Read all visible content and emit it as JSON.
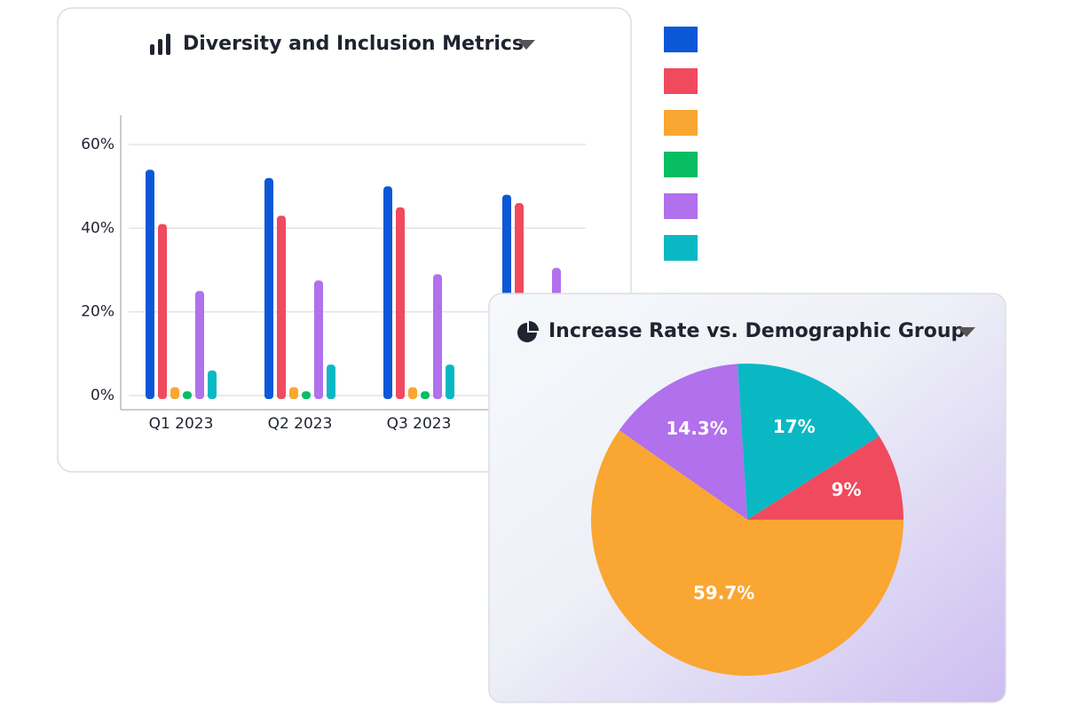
{
  "chart_data": [
    {
      "type": "bar",
      "title": "Diversity and Inclusion Metrics",
      "categories": [
        "Q1 2023",
        "Q2 2023",
        "Q3 2023",
        null
      ],
      "series": [
        {
          "color": "#0b57d8",
          "values": [
            54,
            52,
            50,
            48
          ]
        },
        {
          "color": "#f04a5e",
          "values": [
            41,
            43,
            45,
            46
          ]
        },
        {
          "color": "#f9a632",
          "values": [
            2,
            2,
            2,
            null
          ]
        },
        {
          "color": "#08bd63",
          "values": [
            1,
            1,
            1,
            null
          ]
        },
        {
          "color": "#b170ec",
          "values": [
            25,
            27.5,
            29,
            30.5
          ]
        },
        {
          "color": "#0ab8c4",
          "values": [
            6,
            7.4,
            7.4,
            null
          ]
        }
      ],
      "ylim": [
        0,
        67
      ],
      "yticks": [
        {
          "value": 0,
          "label": "0%"
        },
        {
          "value": 20,
          "label": "20%"
        },
        {
          "value": 40,
          "label": "40%"
        },
        {
          "value": 60,
          "label": "60%"
        }
      ],
      "grid": true
    },
    {
      "type": "pie",
      "title": "Increase Rate vs. Demographic Group",
      "values": [
        9,
        17,
        14.3,
        59.7
      ],
      "value_labels": [
        "9%",
        "17%",
        "14.3%",
        "59.7%"
      ],
      "colors": [
        "#f04a5e",
        "#0ab8c4",
        "#b170ec",
        "#f9a632"
      ]
    }
  ]
}
